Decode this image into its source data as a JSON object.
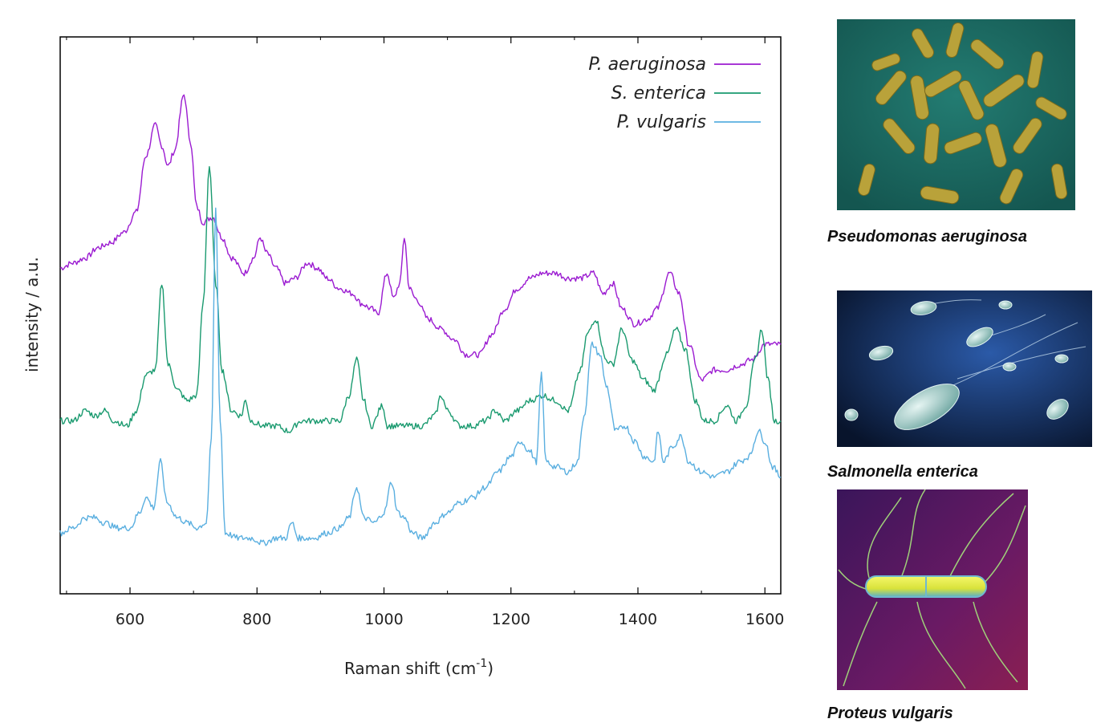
{
  "chart_data": {
    "type": "line",
    "title": "",
    "xlabel": "Raman shift (cm",
    "xlabel_superscript": "-1",
    "xlabel_suffix": ")",
    "ylabel": "intensity / a.u.",
    "xlim": [
      490,
      1625
    ],
    "ylim": [
      0,
      1
    ],
    "x_ticks": [
      600,
      800,
      1000,
      1200,
      1400,
      1600
    ],
    "y_ticks": [],
    "grid": false,
    "legend_position": "top-right",
    "series": [
      {
        "name": "P. aeruginosa",
        "color": "#9b1bd1",
        "points": [
          [
            490,
            0.6
          ],
          [
            510,
            0.61
          ],
          [
            530,
            0.62
          ],
          [
            550,
            0.64
          ],
          [
            570,
            0.65
          ],
          [
            590,
            0.67
          ],
          [
            610,
            0.71
          ],
          [
            625,
            0.82
          ],
          [
            640,
            0.88
          ],
          [
            650,
            0.84
          ],
          [
            660,
            0.8
          ],
          [
            670,
            0.83
          ],
          [
            685,
            0.94
          ],
          [
            695,
            0.85
          ],
          [
            705,
            0.72
          ],
          [
            715,
            0.69
          ],
          [
            730,
            0.7
          ],
          [
            745,
            0.66
          ],
          [
            760,
            0.62
          ],
          [
            780,
            0.59
          ],
          [
            795,
            0.62
          ],
          [
            805,
            0.66
          ],
          [
            815,
            0.63
          ],
          [
            830,
            0.6
          ],
          [
            845,
            0.57
          ],
          [
            860,
            0.58
          ],
          [
            880,
            0.61
          ],
          [
            895,
            0.6
          ],
          [
            910,
            0.58
          ],
          [
            930,
            0.56
          ],
          [
            950,
            0.55
          ],
          [
            965,
            0.53
          ],
          [
            980,
            0.52
          ],
          [
            990,
            0.51
          ],
          [
            1005,
            0.59
          ],
          [
            1015,
            0.54
          ],
          [
            1025,
            0.57
          ],
          [
            1032,
            0.66
          ],
          [
            1040,
            0.56
          ],
          [
            1050,
            0.54
          ],
          [
            1070,
            0.5
          ],
          [
            1090,
            0.48
          ],
          [
            1110,
            0.46
          ],
          [
            1130,
            0.43
          ],
          [
            1150,
            0.43
          ],
          [
            1170,
            0.47
          ],
          [
            1190,
            0.52
          ],
          [
            1210,
            0.56
          ],
          [
            1230,
            0.58
          ],
          [
            1250,
            0.59
          ],
          [
            1270,
            0.59
          ],
          [
            1290,
            0.58
          ],
          [
            1310,
            0.58
          ],
          [
            1330,
            0.59
          ],
          [
            1345,
            0.55
          ],
          [
            1360,
            0.57
          ],
          [
            1375,
            0.52
          ],
          [
            1395,
            0.49
          ],
          [
            1415,
            0.5
          ],
          [
            1430,
            0.52
          ],
          [
            1450,
            0.59
          ],
          [
            1465,
            0.55
          ],
          [
            1480,
            0.45
          ],
          [
            1500,
            0.38
          ],
          [
            1520,
            0.4
          ],
          [
            1540,
            0.4
          ],
          [
            1560,
            0.41
          ],
          [
            1580,
            0.42
          ],
          [
            1600,
            0.45
          ],
          [
            1625,
            0.45
          ]
        ]
      },
      {
        "name": "S. enterica",
        "color": "#1a9a6f",
        "points": [
          [
            490,
            0.3
          ],
          [
            510,
            0.3
          ],
          [
            530,
            0.32
          ],
          [
            545,
            0.31
          ],
          [
            560,
            0.32
          ],
          [
            575,
            0.3
          ],
          [
            595,
            0.29
          ],
          [
            610,
            0.32
          ],
          [
            625,
            0.39
          ],
          [
            640,
            0.4
          ],
          [
            650,
            0.57
          ],
          [
            660,
            0.41
          ],
          [
            675,
            0.36
          ],
          [
            690,
            0.34
          ],
          [
            705,
            0.35
          ],
          [
            715,
            0.53
          ],
          [
            725,
            0.8
          ],
          [
            735,
            0.57
          ],
          [
            745,
            0.4
          ],
          [
            760,
            0.32
          ],
          [
            775,
            0.31
          ],
          [
            782,
            0.34
          ],
          [
            790,
            0.3
          ],
          [
            810,
            0.29
          ],
          [
            830,
            0.29
          ],
          [
            850,
            0.28
          ],
          [
            870,
            0.3
          ],
          [
            890,
            0.3
          ],
          [
            910,
            0.3
          ],
          [
            930,
            0.3
          ],
          [
            945,
            0.35
          ],
          [
            957,
            0.42
          ],
          [
            968,
            0.34
          ],
          [
            980,
            0.29
          ],
          [
            998,
            0.33
          ],
          [
            1005,
            0.29
          ],
          [
            1020,
            0.29
          ],
          [
            1040,
            0.29
          ],
          [
            1060,
            0.29
          ],
          [
            1080,
            0.31
          ],
          [
            1090,
            0.35
          ],
          [
            1100,
            0.32
          ],
          [
            1120,
            0.29
          ],
          [
            1140,
            0.29
          ],
          [
            1160,
            0.3
          ],
          [
            1175,
            0.32
          ],
          [
            1190,
            0.3
          ],
          [
            1210,
            0.32
          ],
          [
            1230,
            0.34
          ],
          [
            1250,
            0.35
          ],
          [
            1270,
            0.34
          ],
          [
            1290,
            0.32
          ],
          [
            1310,
            0.4
          ],
          [
            1320,
            0.47
          ],
          [
            1333,
            0.5
          ],
          [
            1350,
            0.42
          ],
          [
            1360,
            0.41
          ],
          [
            1375,
            0.48
          ],
          [
            1390,
            0.42
          ],
          [
            1410,
            0.38
          ],
          [
            1425,
            0.36
          ],
          [
            1445,
            0.43
          ],
          [
            1460,
            0.48
          ],
          [
            1475,
            0.44
          ],
          [
            1490,
            0.34
          ],
          [
            1505,
            0.3
          ],
          [
            1520,
            0.3
          ],
          [
            1540,
            0.33
          ],
          [
            1555,
            0.3
          ],
          [
            1570,
            0.33
          ],
          [
            1585,
            0.42
          ],
          [
            1595,
            0.48
          ],
          [
            1605,
            0.38
          ],
          [
            1615,
            0.3
          ],
          [
            1625,
            0.3
          ]
        ]
      },
      {
        "name": "P. vulgaris",
        "color": "#5aafe0",
        "points": [
          [
            490,
            0.08
          ],
          [
            510,
            0.09
          ],
          [
            530,
            0.11
          ],
          [
            545,
            0.11
          ],
          [
            560,
            0.1
          ],
          [
            580,
            0.09
          ],
          [
            600,
            0.09
          ],
          [
            615,
            0.12
          ],
          [
            625,
            0.15
          ],
          [
            637,
            0.13
          ],
          [
            648,
            0.22
          ],
          [
            658,
            0.14
          ],
          [
            675,
            0.11
          ],
          [
            690,
            0.1
          ],
          [
            705,
            0.09
          ],
          [
            720,
            0.1
          ],
          [
            728,
            0.26
          ],
          [
            735,
            0.72
          ],
          [
            742,
            0.3
          ],
          [
            750,
            0.08
          ],
          [
            770,
            0.07
          ],
          [
            790,
            0.07
          ],
          [
            810,
            0.06
          ],
          [
            830,
            0.07
          ],
          [
            845,
            0.07
          ],
          [
            855,
            0.1
          ],
          [
            865,
            0.07
          ],
          [
            890,
            0.07
          ],
          [
            910,
            0.08
          ],
          [
            930,
            0.09
          ],
          [
            945,
            0.11
          ],
          [
            957,
            0.17
          ],
          [
            968,
            0.11
          ],
          [
            985,
            0.1
          ],
          [
            1000,
            0.12
          ],
          [
            1012,
            0.18
          ],
          [
            1022,
            0.12
          ],
          [
            1032,
            0.11
          ],
          [
            1045,
            0.08
          ],
          [
            1060,
            0.07
          ],
          [
            1080,
            0.1
          ],
          [
            1100,
            0.12
          ],
          [
            1120,
            0.14
          ],
          [
            1140,
            0.15
          ],
          [
            1160,
            0.17
          ],
          [
            1180,
            0.2
          ],
          [
            1200,
            0.23
          ],
          [
            1215,
            0.26
          ],
          [
            1230,
            0.24
          ],
          [
            1240,
            0.22
          ],
          [
            1248,
            0.39
          ],
          [
            1255,
            0.22
          ],
          [
            1270,
            0.21
          ],
          [
            1290,
            0.2
          ],
          [
            1305,
            0.22
          ],
          [
            1315,
            0.31
          ],
          [
            1328,
            0.45
          ],
          [
            1340,
            0.43
          ],
          [
            1350,
            0.37
          ],
          [
            1365,
            0.28
          ],
          [
            1380,
            0.29
          ],
          [
            1395,
            0.26
          ],
          [
            1410,
            0.23
          ],
          [
            1425,
            0.22
          ],
          [
            1432,
            0.28
          ],
          [
            1440,
            0.22
          ],
          [
            1455,
            0.25
          ],
          [
            1468,
            0.27
          ],
          [
            1480,
            0.22
          ],
          [
            1500,
            0.2
          ],
          [
            1520,
            0.19
          ],
          [
            1540,
            0.2
          ],
          [
            1560,
            0.22
          ],
          [
            1575,
            0.23
          ],
          [
            1590,
            0.28
          ],
          [
            1600,
            0.26
          ],
          [
            1612,
            0.21
          ],
          [
            1625,
            0.19
          ]
        ]
      }
    ]
  },
  "bacteria": [
    {
      "caption": "Pseudomonas aeruginosa"
    },
    {
      "caption": "Salmonella enterica"
    },
    {
      "caption": "Proteus vulgaris"
    }
  ],
  "colors": {
    "p_aeruginosa": "#9b1bd1",
    "s_enterica": "#1a9a6f",
    "p_vulgaris": "#5aafe0",
    "panel1_bg": "#1b6e66",
    "panel2_bg": "#0c2142",
    "panel3_bg": "#4a1660"
  }
}
